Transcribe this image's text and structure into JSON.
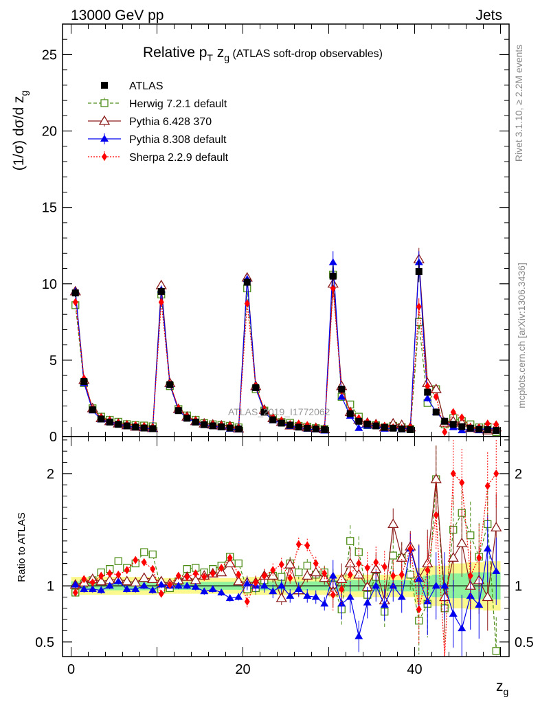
{
  "header": {
    "energy_label": "13000 GeV pp",
    "category_label": "Jets",
    "rivet_label": "Rivet 3.1.10, ≥ 2.2M events",
    "mcplots_label": "mcplots.cern.ch [arXiv:1306.3436]"
  },
  "chart_data": [
    {
      "type": "scatter",
      "title_main": "Relative p",
      "title_sub_t": "T",
      "title_z": " z",
      "title_sub_g": "g",
      "title_rest": " (ATLAS soft-drop observables)",
      "watermark": "ATLAS_2019_I1772062",
      "ylabel": "(1/σ) dσ/d z",
      "ylabel_sub": "g",
      "xlabel": "z",
      "xlabel_sub": "g",
      "xlim": [
        -1,
        51
      ],
      "ylim": [
        0,
        27
      ],
      "xticks": [
        "0",
        "20",
        "40"
      ],
      "yticks": [
        "0",
        "5",
        "10",
        "15",
        "20",
        "25"
      ],
      "legend_position": "top-left",
      "x": [
        0.5,
        1.5,
        2.5,
        3.5,
        4.5,
        5.5,
        6.5,
        7.5,
        8.5,
        9.5,
        10.5,
        11.5,
        12.5,
        13.5,
        14.5,
        15.5,
        16.5,
        17.5,
        18.5,
        19.5,
        20.5,
        21.5,
        22.5,
        23.5,
        24.5,
        25.5,
        26.5,
        27.5,
        28.5,
        29.5,
        30.5,
        31.5,
        32.5,
        33.5,
        34.5,
        35.5,
        36.5,
        37.5,
        38.5,
        39.5,
        40.5,
        41.5,
        42.5,
        43.5,
        44.5,
        45.5,
        46.5,
        47.5,
        48.5,
        49.5
      ],
      "series": [
        {
          "name": "ATLAS",
          "color": "#000000",
          "marker": "filled-square",
          "values": [
            9.4,
            3.6,
            1.75,
            1.15,
            0.95,
            0.8,
            0.7,
            0.62,
            0.56,
            0.52,
            9.5,
            3.4,
            1.7,
            1.2,
            0.95,
            0.78,
            0.7,
            0.64,
            0.56,
            0.5,
            10.1,
            3.2,
            1.6,
            1.1,
            0.88,
            0.75,
            0.62,
            0.55,
            0.5,
            0.45,
            10.5,
            3.1,
            1.5,
            1.0,
            0.82,
            0.7,
            0.6,
            0.55,
            0.5,
            0.45,
            10.8,
            2.9,
            1.6,
            1.0,
            0.8,
            0.65,
            0.55,
            0.48,
            0.45,
            0.4
          ]
        },
        {
          "name": "Herwig 7.2.1 default",
          "color": "#4c8c16",
          "marker": "open-square",
          "values": [
            8.6,
            3.5,
            1.85,
            1.3,
            1.1,
            0.97,
            0.81,
            0.75,
            0.72,
            0.67,
            9.3,
            3.3,
            1.8,
            1.38,
            1.1,
            0.88,
            0.8,
            0.76,
            0.7,
            0.6,
            9.7,
            3.1,
            1.7,
            1.2,
            0.95,
            0.9,
            0.7,
            0.65,
            0.55,
            0.5,
            10.6,
            2.6,
            2.1,
            1.3,
            0.75,
            0.75,
            0.6,
            0.7,
            0.62,
            0.5,
            7.5,
            2.2,
            3.1,
            0.8,
            1.2,
            1.0,
            0.8,
            0.6,
            0.65,
            0.3
          ]
        },
        {
          "name": "Pythia 6.428 370",
          "color": "#8b1a1a",
          "marker": "open-triangle",
          "values": [
            9.5,
            3.7,
            1.85,
            1.2,
            1.0,
            0.85,
            0.73,
            0.64,
            0.6,
            0.55,
            9.9,
            3.5,
            1.8,
            1.3,
            1.0,
            0.85,
            0.78,
            0.72,
            0.68,
            0.52,
            10.4,
            3.3,
            1.75,
            1.2,
            0.96,
            0.72,
            0.68,
            0.6,
            0.56,
            0.48,
            10.0,
            3.3,
            1.6,
            1.1,
            0.9,
            0.8,
            0.6,
            0.85,
            0.75,
            0.6,
            11.6,
            3.5,
            3.1,
            0.9,
            1.0,
            0.9,
            0.55,
            0.5,
            0.4,
            0.6
          ]
        },
        {
          "name": "Pythia 8.308 default",
          "color": "#0000ee",
          "marker": "filled-triangle",
          "values": [
            9.5,
            3.5,
            1.7,
            1.1,
            0.95,
            0.83,
            0.68,
            0.6,
            0.56,
            0.5,
            9.6,
            3.4,
            1.7,
            1.2,
            0.94,
            0.74,
            0.68,
            0.6,
            0.5,
            0.45,
            10.3,
            3.2,
            1.6,
            1.05,
            0.88,
            0.68,
            0.6,
            0.5,
            0.45,
            0.38,
            11.4,
            2.6,
            1.35,
            0.55,
            0.7,
            0.7,
            0.5,
            0.55,
            0.45,
            0.6,
            11.4,
            2.5,
            1.6,
            1.0,
            0.6,
            0.4,
            0.5,
            0.4,
            0.6,
            0.45
          ]
        },
        {
          "name": "Sherpa 2.2.9 default",
          "color": "#ff0000",
          "marker": "filled-diamond",
          "values": [
            8.8,
            3.8,
            1.8,
            1.25,
            1.05,
            0.88,
            0.8,
            0.76,
            0.68,
            0.6,
            8.8,
            3.45,
            1.85,
            1.3,
            1.05,
            0.84,
            0.78,
            0.74,
            0.7,
            0.55,
            8.7,
            3.3,
            1.75,
            1.25,
            1.05,
            0.8,
            0.85,
            0.75,
            0.6,
            0.5,
            9.7,
            3.0,
            1.65,
            1.2,
            0.95,
            0.85,
            0.7,
            0.6,
            0.55,
            0.6,
            8.5,
            3.3,
            2.6,
            0.3,
            1.6,
            1.25,
            0.6,
            0.6,
            0.85,
            0.8
          ]
        }
      ]
    },
    {
      "type": "scatter",
      "ylabel": "Ratio to ATLAS",
      "xlabel": "z",
      "xlabel_sub": "g",
      "xlim": [
        -1,
        51
      ],
      "ylim": [
        0.37,
        2.33
      ],
      "xticks": [
        "0",
        "20",
        "40"
      ],
      "yticks": [
        "0.5",
        "1",
        "2"
      ],
      "reference_line": 1.0,
      "bands": {
        "inner_color": "#8ef19b",
        "outer_color": "#fbf98e",
        "inner_halfwidth": [
          0.04,
          0.04,
          0.04,
          0.04,
          0.04,
          0.04,
          0.04,
          0.04,
          0.04,
          0.04,
          0.035,
          0.035,
          0.035,
          0.035,
          0.035,
          0.035,
          0.035,
          0.035,
          0.035,
          0.035,
          0.04,
          0.04,
          0.04,
          0.04,
          0.04,
          0.04,
          0.04,
          0.04,
          0.04,
          0.04,
          0.05,
          0.05,
          0.05,
          0.05,
          0.05,
          0.05,
          0.05,
          0.05,
          0.05,
          0.05,
          0.08,
          0.09,
          0.1,
          0.1,
          0.11,
          0.11,
          0.12,
          0.12,
          0.12,
          0.12
        ],
        "outer_halfwidth": [
          0.08,
          0.08,
          0.08,
          0.08,
          0.08,
          0.08,
          0.08,
          0.08,
          0.08,
          0.08,
          0.07,
          0.07,
          0.07,
          0.07,
          0.07,
          0.07,
          0.07,
          0.07,
          0.07,
          0.07,
          0.08,
          0.08,
          0.08,
          0.08,
          0.08,
          0.08,
          0.08,
          0.08,
          0.08,
          0.08,
          0.1,
          0.1,
          0.1,
          0.1,
          0.1,
          0.1,
          0.1,
          0.1,
          0.1,
          0.1,
          0.16,
          0.17,
          0.18,
          0.18,
          0.2,
          0.2,
          0.21,
          0.21,
          0.22,
          0.22
        ]
      },
      "series": [
        {
          "name": "Herwig 7.2.1 default",
          "values": [
            0.94,
            1.02,
            1.05,
            1.12,
            1.15,
            1.22,
            1.16,
            1.2,
            1.3,
            1.28,
            0.97,
            0.98,
            1.04,
            1.15,
            1.16,
            1.12,
            1.15,
            1.18,
            1.26,
            1.2,
            0.97,
            0.98,
            1.05,
            1.09,
            1.08,
            1.2,
            1.12,
            1.18,
            1.1,
            1.12,
            1.01,
            0.79,
            1.4,
            1.3,
            0.92,
            1.08,
            0.77,
            1.27,
            1.25,
            1.1,
            0.69,
            0.84,
            1.95,
            0.8,
            1.5,
            1.65,
            1.45,
            1.26,
            1.55,
            0.42
          ]
        },
        {
          "name": "Pythia 6.428 370",
          "values": [
            1.01,
            1.03,
            1.06,
            1.04,
            1.05,
            1.06,
            1.04,
            1.03,
            1.07,
            1.06,
            1.04,
            1.02,
            1.05,
            1.08,
            1.05,
            1.09,
            1.11,
            1.12,
            1.2,
            1.04,
            1.03,
            1.03,
            1.09,
            1.09,
            0.89,
            1.19,
            0.96,
            1.09,
            1.12,
            1.07,
            0.95,
            1.06,
            1.2,
            1.1,
            0.99,
            1.15,
            0.87,
            1.55,
            1.25,
            1.35,
            1.07,
            1.2,
            1.95,
            0.9,
            1.25,
            1.38,
            1.0,
            1.05,
            0.9,
            1.52
          ]
        },
        {
          "name": "Pythia 8.308 default",
          "values": [
            1.01,
            0.97,
            0.97,
            0.96,
            1.0,
            1.04,
            0.97,
            0.97,
            1.0,
            0.96,
            1.01,
            1.0,
            1.0,
            1.0,
            0.99,
            0.95,
            0.97,
            0.94,
            0.89,
            0.9,
            1.02,
            1.0,
            1.0,
            0.95,
            1.0,
            0.91,
            0.97,
            0.91,
            0.9,
            0.84,
            1.09,
            0.84,
            0.9,
            0.55,
            0.85,
            1.0,
            0.83,
            1.0,
            0.9,
            1.33,
            1.06,
            0.86,
            1.0,
            1.0,
            0.75,
            0.62,
            0.91,
            0.83,
            1.33,
            1.13
          ]
        },
        {
          "name": "Sherpa 2.2.9 default",
          "values": [
            0.94,
            1.06,
            1.03,
            1.09,
            1.11,
            1.1,
            1.14,
            1.23,
            1.21,
            1.15,
            0.93,
            1.01,
            1.09,
            1.08,
            1.11,
            1.08,
            1.11,
            1.16,
            1.25,
            1.1,
            0.86,
            1.03,
            1.09,
            1.14,
            1.19,
            1.07,
            1.37,
            1.36,
            1.2,
            1.11,
            0.92,
            0.97,
            1.1,
            1.2,
            1.16,
            1.21,
            1.17,
            1.09,
            1.1,
            1.33,
            0.79,
            1.14,
            1.63,
            0.3,
            2.0,
            1.92,
            1.09,
            1.25,
            1.89,
            2.0
          ]
        }
      ]
    }
  ]
}
